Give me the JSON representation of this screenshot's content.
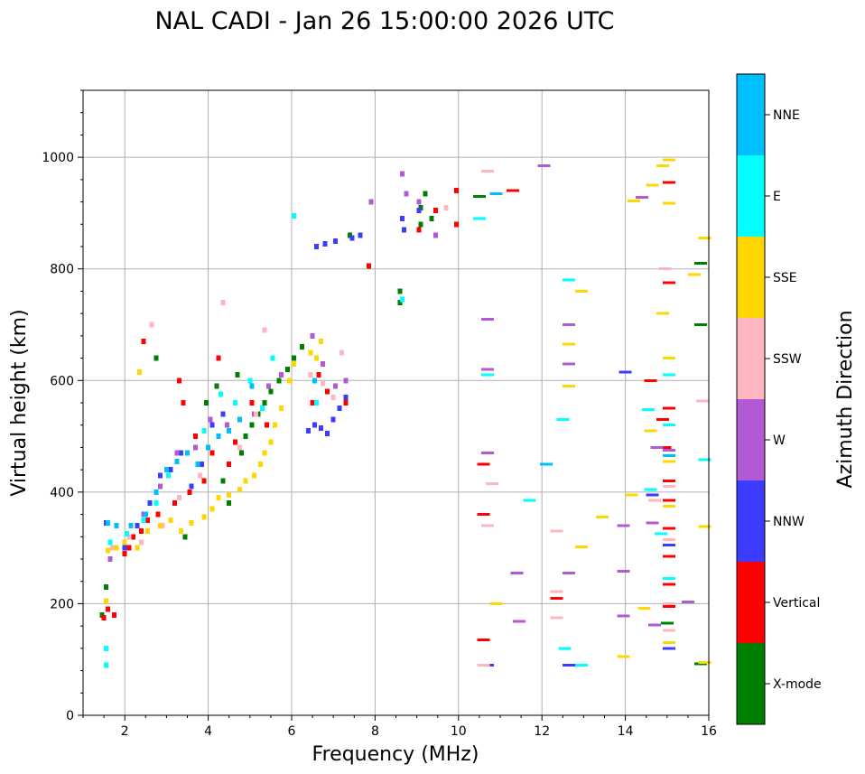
{
  "chart_data": {
    "type": "scatter",
    "title": "NAL CADI - Jan 26 15:00:00 2026 UTC",
    "xlabel": "Frequency (MHz)",
    "ylabel": "Virtual height (km)",
    "xlim": [
      1.0,
      16.0
    ],
    "ylim": [
      0,
      1120
    ],
    "xticks": [
      2,
      4,
      6,
      8,
      10,
      12,
      14,
      16
    ],
    "xtick_labels": [
      "2",
      "4",
      "6",
      "8",
      "10",
      "12",
      "14",
      "16"
    ],
    "yticks": [
      0,
      200,
      400,
      600,
      800,
      1000
    ],
    "ytick_labels": [
      "0",
      "200",
      "400",
      "600",
      "800",
      "1000"
    ],
    "grid": true,
    "colorbar": {
      "title": "Azimuth Direction",
      "categories": [
        {
          "name": "X-mode",
          "color": "#008000"
        },
        {
          "name": "Vertical",
          "color": "#ff0000"
        },
        {
          "name": "NNW",
          "color": "#3c3cff"
        },
        {
          "name": "W",
          "color": "#b25ad6"
        },
        {
          "name": "SSW",
          "color": "#ffb6c1"
        },
        {
          "name": "SSE",
          "color": "#ffd700"
        },
        {
          "name": "E",
          "color": "#00ffff"
        },
        {
          "name": "NNE",
          "color": "#00bfff"
        }
      ]
    },
    "series": [
      {
        "name": "X-mode",
        "points": [
          [
            1.45,
            180
          ],
          [
            1.55,
            230
          ],
          [
            2.75,
            640
          ],
          [
            3.45,
            320
          ],
          [
            3.95,
            560
          ],
          [
            4.2,
            590
          ],
          [
            4.35,
            420
          ],
          [
            4.5,
            380
          ],
          [
            4.7,
            610
          ],
          [
            4.8,
            470
          ],
          [
            4.9,
            500
          ],
          [
            5.05,
            520
          ],
          [
            5.2,
            540
          ],
          [
            5.35,
            560
          ],
          [
            5.5,
            580
          ],
          [
            5.7,
            600
          ],
          [
            5.9,
            620
          ],
          [
            6.05,
            640
          ],
          [
            6.25,
            660
          ],
          [
            7.4,
            860
          ],
          [
            8.6,
            740
          ],
          [
            8.6,
            760
          ],
          [
            9.1,
            880
          ],
          [
            9.1,
            910
          ],
          [
            9.2,
            935
          ],
          [
            9.35,
            890
          ],
          [
            10.5,
            930
          ],
          [
            15.0,
            165
          ],
          [
            15.8,
            92
          ],
          [
            15.8,
            700
          ],
          [
            15.8,
            810
          ]
        ]
      },
      {
        "name": "Vertical",
        "points": [
          [
            1.5,
            175
          ],
          [
            1.6,
            190
          ],
          [
            1.75,
            180
          ],
          [
            2.0,
            290
          ],
          [
            2.1,
            300
          ],
          [
            2.2,
            320
          ],
          [
            2.4,
            330
          ],
          [
            2.45,
            670
          ],
          [
            2.55,
            350
          ],
          [
            2.8,
            360
          ],
          [
            3.2,
            380
          ],
          [
            3.3,
            600
          ],
          [
            3.4,
            560
          ],
          [
            3.55,
            400
          ],
          [
            3.7,
            500
          ],
          [
            3.9,
            420
          ],
          [
            4.1,
            470
          ],
          [
            4.25,
            640
          ],
          [
            4.5,
            450
          ],
          [
            4.65,
            490
          ],
          [
            5.05,
            560
          ],
          [
            5.4,
            520
          ],
          [
            6.5,
            560
          ],
          [
            6.65,
            610
          ],
          [
            6.85,
            580
          ],
          [
            7.3,
            560
          ],
          [
            7.85,
            805
          ],
          [
            9.05,
            870
          ],
          [
            9.45,
            905
          ],
          [
            9.95,
            880
          ],
          [
            9.95,
            940
          ],
          [
            10.6,
            450
          ],
          [
            10.6,
            360
          ],
          [
            10.6,
            135
          ],
          [
            11.3,
            940
          ],
          [
            12.35,
            210
          ],
          [
            14.6,
            600
          ],
          [
            14.9,
            530
          ],
          [
            14.95,
            480
          ],
          [
            15.05,
            550
          ],
          [
            15.05,
            420
          ],
          [
            15.05,
            385
          ],
          [
            15.05,
            335
          ],
          [
            15.05,
            285
          ],
          [
            15.05,
            235
          ],
          [
            15.05,
            195
          ],
          [
            15.05,
            955
          ],
          [
            15.05,
            775
          ]
        ]
      },
      {
        "name": "NNW",
        "points": [
          [
            1.55,
            345
          ],
          [
            2.0,
            300
          ],
          [
            2.3,
            340
          ],
          [
            2.6,
            380
          ],
          [
            2.85,
            430
          ],
          [
            3.1,
            440
          ],
          [
            3.35,
            470
          ],
          [
            3.6,
            410
          ],
          [
            3.85,
            450
          ],
          [
            4.1,
            520
          ],
          [
            4.35,
            540
          ],
          [
            6.4,
            510
          ],
          [
            6.55,
            520
          ],
          [
            6.7,
            515
          ],
          [
            6.85,
            505
          ],
          [
            7.0,
            530
          ],
          [
            7.15,
            550
          ],
          [
            7.3,
            570
          ],
          [
            6.6,
            840
          ],
          [
            6.8,
            845
          ],
          [
            7.05,
            850
          ],
          [
            7.45,
            855
          ],
          [
            7.65,
            860
          ],
          [
            8.65,
            890
          ],
          [
            8.7,
            870
          ],
          [
            9.05,
            905
          ],
          [
            10.7,
            90
          ],
          [
            12.65,
            90
          ],
          [
            14.0,
            615
          ],
          [
            14.65,
            395
          ],
          [
            15.05,
            305
          ],
          [
            15.05,
            120
          ]
        ]
      },
      {
        "name": "W",
        "points": [
          [
            1.65,
            280
          ],
          [
            2.0,
            310
          ],
          [
            2.45,
            360
          ],
          [
            2.85,
            410
          ],
          [
            3.25,
            470
          ],
          [
            3.7,
            480
          ],
          [
            4.05,
            530
          ],
          [
            4.45,
            520
          ],
          [
            5.1,
            540
          ],
          [
            5.45,
            590
          ],
          [
            5.75,
            610
          ],
          [
            6.5,
            680
          ],
          [
            6.75,
            630
          ],
          [
            7.05,
            590
          ],
          [
            7.3,
            600
          ],
          [
            7.9,
            920
          ],
          [
            8.65,
            970
          ],
          [
            8.75,
            935
          ],
          [
            9.05,
            920
          ],
          [
            9.45,
            860
          ],
          [
            10.7,
            710
          ],
          [
            10.7,
            470
          ],
          [
            10.7,
            620
          ],
          [
            11.4,
            255
          ],
          [
            11.45,
            168
          ],
          [
            12.05,
            985
          ],
          [
            12.65,
            700
          ],
          [
            12.65,
            630
          ],
          [
            12.65,
            255
          ],
          [
            13.95,
            340
          ],
          [
            13.95,
            258
          ],
          [
            13.95,
            178
          ],
          [
            14.4,
            928
          ],
          [
            14.75,
            480
          ],
          [
            14.65,
            345
          ],
          [
            14.7,
            162
          ],
          [
            15.05,
            475
          ],
          [
            15.5,
            203
          ]
        ]
      },
      {
        "name": "SSW",
        "points": [
          [
            1.7,
            300
          ],
          [
            2.1,
            320
          ],
          [
            2.4,
            310
          ],
          [
            2.65,
            700
          ],
          [
            2.9,
            340
          ],
          [
            3.3,
            390
          ],
          [
            3.8,
            430
          ],
          [
            4.25,
            500
          ],
          [
            4.35,
            740
          ],
          [
            4.75,
            480
          ],
          [
            5.15,
            540
          ],
          [
            5.35,
            690
          ],
          [
            6.45,
            610
          ],
          [
            6.75,
            595
          ],
          [
            7.0,
            570
          ],
          [
            7.2,
            650
          ],
          [
            9.7,
            910
          ],
          [
            10.6,
            90
          ],
          [
            10.7,
            975
          ],
          [
            10.8,
            415
          ],
          [
            10.7,
            340
          ],
          [
            12.35,
            330
          ],
          [
            12.35,
            222
          ],
          [
            12.35,
            175
          ],
          [
            14.7,
            385
          ],
          [
            14.95,
            800
          ],
          [
            15.05,
            520
          ],
          [
            15.05,
            410
          ],
          [
            15.05,
            315
          ],
          [
            15.05,
            200
          ],
          [
            15.05,
            152
          ],
          [
            15.85,
            563
          ]
        ]
      },
      {
        "name": "SSE",
        "points": [
          [
            1.55,
            205
          ],
          [
            1.6,
            295
          ],
          [
            1.8,
            300
          ],
          [
            2.0,
            310
          ],
          [
            2.3,
            300
          ],
          [
            2.35,
            615
          ],
          [
            2.55,
            330
          ],
          [
            2.85,
            340
          ],
          [
            3.1,
            350
          ],
          [
            3.35,
            330
          ],
          [
            3.6,
            345
          ],
          [
            3.9,
            355
          ],
          [
            4.1,
            370
          ],
          [
            4.25,
            390
          ],
          [
            4.5,
            395
          ],
          [
            4.75,
            405
          ],
          [
            4.9,
            420
          ],
          [
            5.1,
            430
          ],
          [
            5.25,
            450
          ],
          [
            5.35,
            470
          ],
          [
            5.5,
            490
          ],
          [
            5.6,
            520
          ],
          [
            5.75,
            550
          ],
          [
            5.95,
            600
          ],
          [
            6.05,
            630
          ],
          [
            6.45,
            650
          ],
          [
            6.6,
            640
          ],
          [
            6.7,
            670
          ],
          [
            10.9,
            935
          ],
          [
            10.9,
            200
          ],
          [
            12.65,
            665
          ],
          [
            12.65,
            590
          ],
          [
            12.95,
            760
          ],
          [
            12.95,
            302
          ],
          [
            13.45,
            355
          ],
          [
            13.95,
            105
          ],
          [
            14.15,
            395
          ],
          [
            14.2,
            922
          ],
          [
            14.45,
            192
          ],
          [
            14.6,
            510
          ],
          [
            14.65,
            950
          ],
          [
            14.9,
            985
          ],
          [
            14.9,
            720
          ],
          [
            15.05,
            995
          ],
          [
            15.05,
            918
          ],
          [
            15.05,
            640
          ],
          [
            15.05,
            455
          ],
          [
            15.05,
            375
          ],
          [
            15.05,
            130
          ],
          [
            15.65,
            790
          ],
          [
            15.9,
            855
          ],
          [
            15.9,
            338
          ],
          [
            15.9,
            95
          ]
        ]
      },
      {
        "name": "E",
        "points": [
          [
            1.55,
            90
          ],
          [
            1.55,
            120
          ],
          [
            1.65,
            310
          ],
          [
            2.05,
            325
          ],
          [
            2.45,
            350
          ],
          [
            2.75,
            380
          ],
          [
            3.05,
            430
          ],
          [
            3.5,
            470
          ],
          [
            3.9,
            510
          ],
          [
            4.3,
            575
          ],
          [
            4.65,
            560
          ],
          [
            5.0,
            600
          ],
          [
            5.3,
            550
          ],
          [
            5.55,
            640
          ],
          [
            6.05,
            895
          ],
          [
            6.6,
            560
          ],
          [
            8.65,
            745
          ],
          [
            10.5,
            890
          ],
          [
            10.7,
            610
          ],
          [
            11.7,
            385
          ],
          [
            12.55,
            120
          ],
          [
            12.5,
            530
          ],
          [
            12.65,
            780
          ],
          [
            12.95,
            90
          ],
          [
            14.55,
            548
          ],
          [
            14.6,
            405
          ],
          [
            14.85,
            325
          ],
          [
            15.05,
            610
          ],
          [
            15.05,
            520
          ],
          [
            15.05,
            245
          ],
          [
            15.9,
            458
          ]
        ]
      },
      {
        "name": "NNE",
        "points": [
          [
            1.6,
            345
          ],
          [
            1.8,
            340
          ],
          [
            2.15,
            340
          ],
          [
            2.5,
            360
          ],
          [
            2.75,
            400
          ],
          [
            3.0,
            440
          ],
          [
            3.25,
            455
          ],
          [
            3.5,
            470
          ],
          [
            3.75,
            450
          ],
          [
            4.0,
            480
          ],
          [
            4.25,
            500
          ],
          [
            4.5,
            510
          ],
          [
            4.75,
            530
          ],
          [
            5.05,
            590
          ],
          [
            6.55,
            600
          ],
          [
            10.9,
            935
          ],
          [
            12.1,
            450
          ],
          [
            15.05,
            465
          ]
        ]
      }
    ]
  }
}
